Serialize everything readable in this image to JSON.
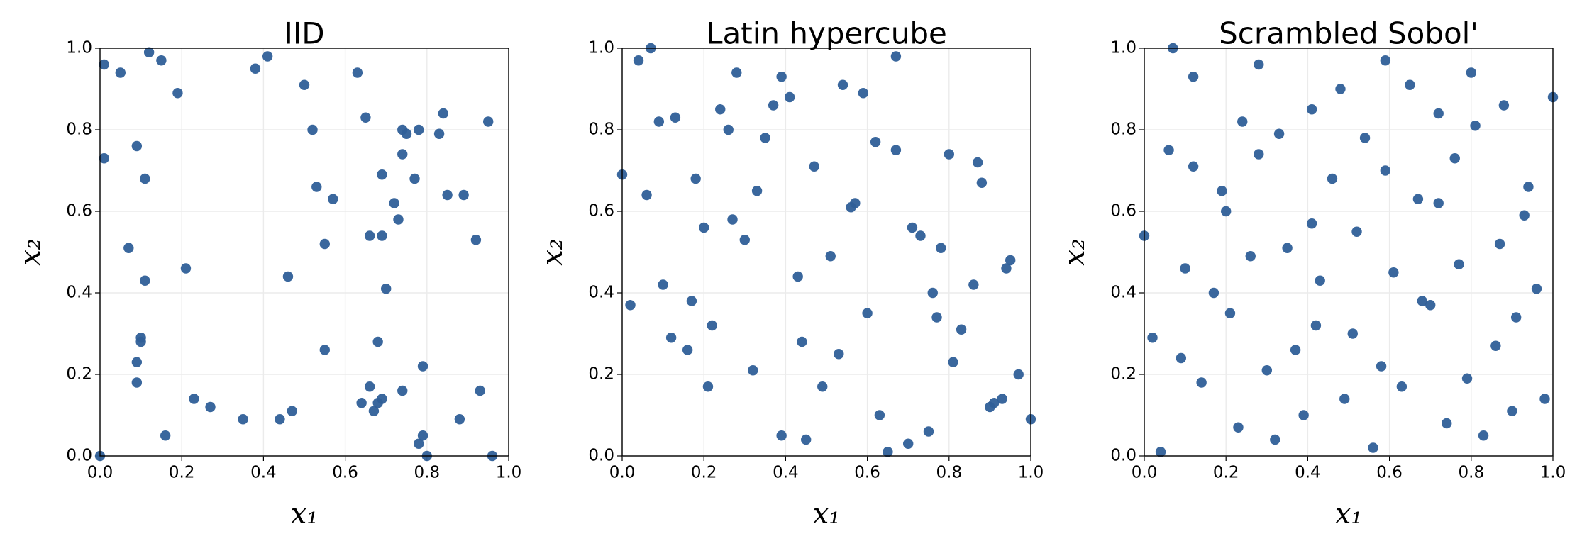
{
  "chart_data": [
    {
      "type": "scatter",
      "title": "IID",
      "xlabel": "x₁",
      "ylabel": "x₂",
      "color": "#2f5f98",
      "grid": true,
      "xlim": [
        0,
        1
      ],
      "ylim": [
        0,
        1
      ],
      "xticks": [
        {
          "value": 0,
          "label": "0.0"
        },
        {
          "value": 0.2,
          "label": "0.2"
        },
        {
          "value": 0.4,
          "label": "0.4"
        },
        {
          "value": 0.6,
          "label": "0.6"
        },
        {
          "value": 0.8,
          "label": "0.8"
        },
        {
          "value": 1,
          "label": "1.0"
        }
      ],
      "yticks": [
        {
          "value": 0,
          "label": "0.0"
        },
        {
          "value": 0.2,
          "label": "0.2"
        },
        {
          "value": 0.4,
          "label": "0.4"
        },
        {
          "value": 0.6,
          "label": "0.6"
        },
        {
          "value": 0.8,
          "label": "0.8"
        },
        {
          "value": 1,
          "label": "1.0"
        }
      ],
      "x": [
        0.0,
        0.01,
        0.01,
        0.05,
        0.07,
        0.09,
        0.11,
        0.11,
        0.1,
        0.1,
        0.09,
        0.09,
        0.16,
        0.12,
        0.15,
        0.19,
        0.21,
        0.23,
        0.27,
        0.35,
        0.38,
        0.41,
        0.44,
        0.46,
        0.47,
        0.5,
        0.52,
        0.53,
        0.57,
        0.55,
        0.55,
        0.63,
        0.65,
        0.64,
        0.66,
        0.67,
        0.68,
        0.69,
        0.68,
        0.66,
        0.69,
        0.69,
        0.7,
        0.72,
        0.73,
        0.74,
        0.74,
        0.75,
        0.74,
        0.77,
        0.78,
        0.83,
        0.84,
        0.85,
        0.89,
        0.92,
        0.95,
        0.79,
        0.79,
        0.78,
        0.8,
        0.88,
        0.93,
        0.96
      ],
      "values": [
        0.0,
        0.96,
        0.73,
        0.94,
        0.51,
        0.76,
        0.68,
        0.43,
        0.29,
        0.28,
        0.23,
        0.18,
        0.05,
        0.99,
        0.97,
        0.89,
        0.46,
        0.14,
        0.12,
        0.09,
        0.95,
        0.98,
        0.09,
        0.44,
        0.11,
        0.91,
        0.8,
        0.66,
        0.63,
        0.52,
        0.26,
        0.94,
        0.83,
        0.13,
        0.17,
        0.11,
        0.13,
        0.14,
        0.28,
        0.54,
        0.54,
        0.69,
        0.41,
        0.62,
        0.58,
        0.74,
        0.8,
        0.79,
        0.16,
        0.68,
        0.8,
        0.79,
        0.84,
        0.64,
        0.64,
        0.53,
        0.82,
        0.22,
        0.05,
        0.03,
        0.0,
        0.09,
        0.16,
        0.0
      ]
    },
    {
      "type": "scatter",
      "title": "Latin hypercube",
      "xlabel": "x₁",
      "ylabel": "x₂",
      "color": "#2f5f98",
      "grid": true,
      "xlim": [
        0,
        1
      ],
      "ylim": [
        0,
        1
      ],
      "xticks": [
        {
          "value": 0,
          "label": "0.0"
        },
        {
          "value": 0.2,
          "label": "0.2"
        },
        {
          "value": 0.4,
          "label": "0.4"
        },
        {
          "value": 0.6,
          "label": "0.6"
        },
        {
          "value": 0.8,
          "label": "0.8"
        },
        {
          "value": 1,
          "label": "1.0"
        }
      ],
      "yticks": [
        {
          "value": 0,
          "label": "0.0"
        },
        {
          "value": 0.2,
          "label": "0.2"
        },
        {
          "value": 0.4,
          "label": "0.4"
        },
        {
          "value": 0.6,
          "label": "0.6"
        },
        {
          "value": 0.8,
          "label": "0.8"
        },
        {
          "value": 1,
          "label": "1.0"
        }
      ],
      "x": [
        0.0,
        0.02,
        0.04,
        0.07,
        0.06,
        0.09,
        0.1,
        0.13,
        0.12,
        0.16,
        0.18,
        0.17,
        0.2,
        0.21,
        0.22,
        0.24,
        0.26,
        0.28,
        0.27,
        0.3,
        0.32,
        0.33,
        0.35,
        0.37,
        0.39,
        0.41,
        0.43,
        0.44,
        0.39,
        0.45,
        0.47,
        0.49,
        0.51,
        0.54,
        0.53,
        0.56,
        0.57,
        0.59,
        0.6,
        0.62,
        0.63,
        0.65,
        0.67,
        0.67,
        0.7,
        0.71,
        0.73,
        0.75,
        0.76,
        0.77,
        0.78,
        0.8,
        0.81,
        0.83,
        0.86,
        0.87,
        0.88,
        0.9,
        0.91,
        0.93,
        0.94,
        0.95,
        0.97,
        1.0
      ],
      "values": [
        0.69,
        0.37,
        0.97,
        1.0,
        0.64,
        0.82,
        0.42,
        0.83,
        0.29,
        0.26,
        0.68,
        0.38,
        0.56,
        0.17,
        0.32,
        0.85,
        0.8,
        0.94,
        0.58,
        0.53,
        0.21,
        0.65,
        0.78,
        0.86,
        0.93,
        0.88,
        0.44,
        0.28,
        0.05,
        0.04,
        0.71,
        0.17,
        0.49,
        0.91,
        0.25,
        0.61,
        0.62,
        0.89,
        0.35,
        0.77,
        0.1,
        0.01,
        0.98,
        0.75,
        0.03,
        0.56,
        0.54,
        0.06,
        0.4,
        0.34,
        0.51,
        0.74,
        0.23,
        0.31,
        0.42,
        0.72,
        0.67,
        0.12,
        0.13,
        0.14,
        0.46,
        0.48,
        0.2,
        0.09
      ]
    },
    {
      "type": "scatter",
      "title": "Scrambled Sobol'",
      "xlabel": "x₁",
      "ylabel": "x₂",
      "color": "#2f5f98",
      "grid": true,
      "xlim": [
        0,
        1
      ],
      "ylim": [
        0,
        1
      ],
      "xticks": [
        {
          "value": 0,
          "label": "0.0"
        },
        {
          "value": 0.2,
          "label": "0.2"
        },
        {
          "value": 0.4,
          "label": "0.4"
        },
        {
          "value": 0.6,
          "label": "0.6"
        },
        {
          "value": 0.8,
          "label": "0.8"
        },
        {
          "value": 1,
          "label": "1.0"
        }
      ],
      "yticks": [
        {
          "value": 0,
          "label": "0.0"
        },
        {
          "value": 0.2,
          "label": "0.2"
        },
        {
          "value": 0.4,
          "label": "0.4"
        },
        {
          "value": 0.6,
          "label": "0.6"
        },
        {
          "value": 0.8,
          "label": "0.8"
        },
        {
          "value": 1,
          "label": "1.0"
        }
      ],
      "x": [
        0.0,
        0.02,
        0.04,
        0.06,
        0.07,
        0.09,
        0.1,
        0.12,
        0.12,
        0.14,
        0.17,
        0.19,
        0.2,
        0.21,
        0.23,
        0.24,
        0.26,
        0.28,
        0.28,
        0.3,
        0.32,
        0.33,
        0.35,
        0.37,
        0.39,
        0.41,
        0.41,
        0.42,
        0.43,
        0.46,
        0.48,
        0.49,
        0.51,
        0.52,
        0.54,
        0.56,
        0.58,
        0.59,
        0.59,
        0.61,
        0.63,
        0.65,
        0.67,
        0.68,
        0.7,
        0.72,
        0.72,
        0.74,
        0.76,
        0.77,
        0.79,
        0.8,
        0.81,
        0.83,
        0.87,
        0.86,
        0.88,
        0.9,
        0.91,
        0.93,
        0.94,
        0.96,
        0.98,
        1.0
      ],
      "values": [
        0.54,
        0.29,
        0.01,
        0.75,
        1.0,
        0.24,
        0.46,
        0.71,
        0.93,
        0.18,
        0.4,
        0.65,
        0.6,
        0.35,
        0.07,
        0.82,
        0.49,
        0.74,
        0.96,
        0.21,
        0.04,
        0.79,
        0.51,
        0.26,
        0.1,
        0.85,
        0.57,
        0.32,
        0.43,
        0.68,
        0.9,
        0.14,
        0.3,
        0.55,
        0.78,
        0.02,
        0.22,
        0.97,
        0.7,
        0.45,
        0.17,
        0.91,
        0.63,
        0.38,
        0.37,
        0.84,
        0.62,
        0.08,
        0.73,
        0.47,
        0.19,
        0.94,
        0.81,
        0.05,
        0.52,
        0.27,
        0.86,
        0.11,
        0.34,
        0.59,
        0.66,
        0.41,
        0.14,
        0.88
      ]
    }
  ]
}
